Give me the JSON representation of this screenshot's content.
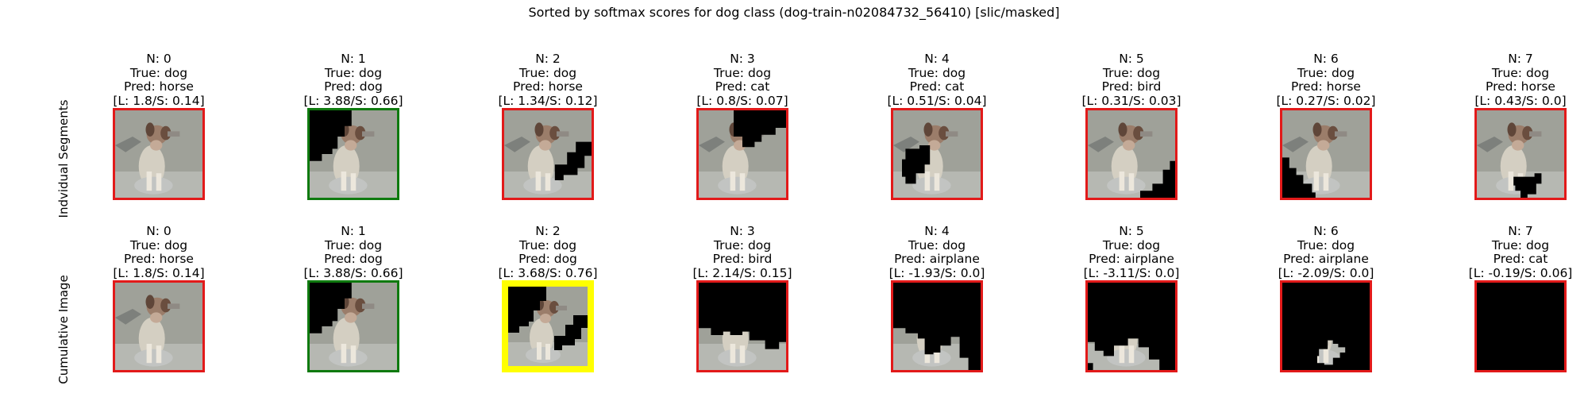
{
  "figure": {
    "title": "Sorted by softmax scores for dog class (dog-train-n02084732_56410) [slic/masked]",
    "row_labels": [
      "Indvidual Segments",
      "Cumulative Image"
    ],
    "colors": {
      "red_border": "#e21a1a",
      "green_border": "#0f7a0f",
      "yellow_border": "#ffff00",
      "mask": "#000000"
    }
  },
  "rows": [
    {
      "name": "individual-segments",
      "panels": [
        {
          "n": "N: 0",
          "true_label": "True: dog",
          "pred": "Pred: horse",
          "scores": "[L: 1.8/S: 0.14]",
          "border": "red",
          "mask": "none"
        },
        {
          "n": "N: 1",
          "true_label": "True: dog",
          "pred": "Pred: dog",
          "scores": "[L: 3.88/S: 0.66]",
          "border": "green",
          "mask": "left"
        },
        {
          "n": "N: 2",
          "true_label": "True: dog",
          "pred": "Pred: horse",
          "scores": "[L: 1.34/S: 0.12]",
          "border": "red",
          "mask": "right"
        },
        {
          "n": "N: 3",
          "true_label": "True: dog",
          "pred": "Pred: cat",
          "scores": "[L: 0.8/S: 0.07]",
          "border": "red",
          "mask": "top-right"
        },
        {
          "n": "N: 4",
          "true_label": "True: dog",
          "pred": "Pred: cat",
          "scores": "[L: 0.51/S: 0.04]",
          "border": "red",
          "mask": "center-left"
        },
        {
          "n": "N: 5",
          "true_label": "True: dog",
          "pred": "Pred: bird",
          "scores": "[L: 0.31/S: 0.03]",
          "border": "red",
          "mask": "bottom-right"
        },
        {
          "n": "N: 6",
          "true_label": "True: dog",
          "pred": "Pred: horse",
          "scores": "[L: 0.27/S: 0.02]",
          "border": "red",
          "mask": "bottom-left"
        },
        {
          "n": "N: 7",
          "true_label": "True: dog",
          "pred": "Pred: horse",
          "scores": "[L: 0.43/S: 0.0]",
          "border": "red",
          "mask": "bottom-center"
        }
      ]
    },
    {
      "name": "cumulative-image",
      "panels": [
        {
          "n": "N: 0",
          "true_label": "True: dog",
          "pred": "Pred: horse",
          "scores": "[L: 1.8/S: 0.14]",
          "border": "red",
          "mask": "none"
        },
        {
          "n": "N: 1",
          "true_label": "True: dog",
          "pred": "Pred: dog",
          "scores": "[L: 3.88/S: 0.66]",
          "border": "green",
          "mask": "left"
        },
        {
          "n": "N: 2",
          "true_label": "True: dog",
          "pred": "Pred: dog",
          "scores": "[L: 3.68/S: 0.76]",
          "border": "yellow",
          "mask": "left-right"
        },
        {
          "n": "N: 3",
          "true_label": "True: dog",
          "pred": "Pred: bird",
          "scores": "[L: 2.14/S: 0.15]",
          "border": "red",
          "mask": "top-half"
        },
        {
          "n": "N: 4",
          "true_label": "True: dog",
          "pred": "Pred: airplane",
          "scores": "[L: -1.93/S: 0.0]",
          "border": "red",
          "mask": "mostly"
        },
        {
          "n": "N: 5",
          "true_label": "True: dog",
          "pred": "Pred: airplane",
          "scores": "[L: -3.11/S: 0.0]",
          "border": "red",
          "mask": "more"
        },
        {
          "n": "N: 6",
          "true_label": "True: dog",
          "pred": "Pred: airplane",
          "scores": "[L: -2.09/S: 0.0]",
          "border": "red",
          "mask": "nearly"
        },
        {
          "n": "N: 7",
          "true_label": "True: dog",
          "pred": "Pred: cat",
          "scores": "[L: -0.19/S: 0.06]",
          "border": "red",
          "mask": "full"
        }
      ]
    }
  ]
}
